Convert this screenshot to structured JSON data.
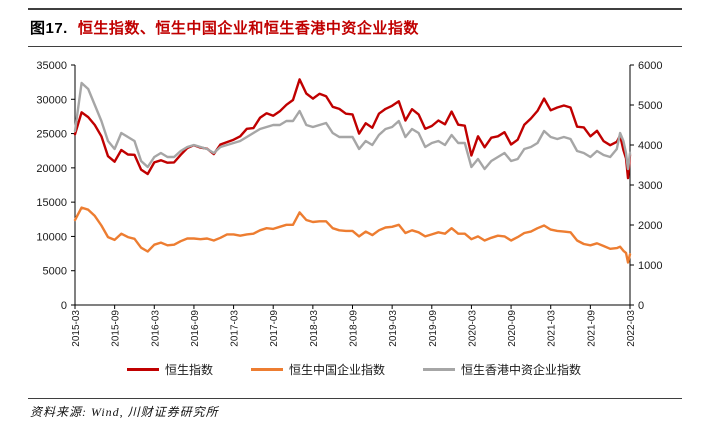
{
  "header": {
    "figure_label": "图17.",
    "figure_title": "恒生指数、恒生中国企业和恒生香港中资企业指数"
  },
  "source_note": "资料来源: Wind, 川财证券研究所",
  "chart_data": {
    "type": "line",
    "title": "恒生指数、恒生中国企业和恒生香港中资企业指数",
    "grid": false,
    "legend_position": "bottom",
    "x_months_span": 84,
    "x_tick_labels": [
      "2015-03",
      "2015-09",
      "2016-03",
      "2016-09",
      "2017-03",
      "2017-09",
      "2018-03",
      "2018-09",
      "2019-03",
      "2019-09",
      "2020-03",
      "2020-09",
      "2021-03",
      "2021-09",
      "2022-03"
    ],
    "axes": {
      "left": {
        "min": 0,
        "max": 35000,
        "step": 5000,
        "tick_labels": [
          "0",
          "5000",
          "10000",
          "15000",
          "20000",
          "25000",
          "30000",
          "35000"
        ]
      },
      "right": {
        "min": 0,
        "max": 6000,
        "step": 1000,
        "tick_labels": [
          "0",
          "1000",
          "2000",
          "3000",
          "4000",
          "5000",
          "6000"
        ]
      }
    },
    "series": [
      {
        "name": "恒生指数",
        "color": "#c00000",
        "axis": "left",
        "points": [
          [
            0,
            24900
          ],
          [
            1,
            28100
          ],
          [
            2,
            27400
          ],
          [
            3,
            26250
          ],
          [
            4,
            24600
          ],
          [
            5,
            21700
          ],
          [
            6,
            20900
          ],
          [
            7,
            22600
          ],
          [
            8,
            21950
          ],
          [
            9,
            21900
          ],
          [
            10,
            19750
          ],
          [
            11,
            19100
          ],
          [
            12,
            20800
          ],
          [
            13,
            21100
          ],
          [
            14,
            20750
          ],
          [
            15,
            20800
          ],
          [
            16,
            21900
          ],
          [
            17,
            22900
          ],
          [
            18,
            23300
          ],
          [
            19,
            22950
          ],
          [
            20,
            22800
          ],
          [
            21,
            22000
          ],
          [
            22,
            23400
          ],
          [
            23,
            23750
          ],
          [
            24,
            24100
          ],
          [
            25,
            24600
          ],
          [
            26,
            25700
          ],
          [
            27,
            25800
          ],
          [
            28,
            27300
          ],
          [
            29,
            27950
          ],
          [
            30,
            27600
          ],
          [
            31,
            28250
          ],
          [
            32,
            29200
          ],
          [
            33,
            29900
          ],
          [
            34,
            32900
          ],
          [
            35,
            30850
          ],
          [
            36,
            30100
          ],
          [
            37,
            30800
          ],
          [
            38,
            30450
          ],
          [
            39,
            28900
          ],
          [
            40,
            28600
          ],
          [
            41,
            27900
          ],
          [
            42,
            27800
          ],
          [
            43,
            25000
          ],
          [
            44,
            26500
          ],
          [
            45,
            25850
          ],
          [
            46,
            27900
          ],
          [
            47,
            28600
          ],
          [
            48,
            29050
          ],
          [
            49,
            29700
          ],
          [
            50,
            26900
          ],
          [
            51,
            28550
          ],
          [
            52,
            27800
          ],
          [
            53,
            25700
          ],
          [
            54,
            26100
          ],
          [
            55,
            26900
          ],
          [
            56,
            26350
          ],
          [
            57,
            28200
          ],
          [
            58,
            26300
          ],
          [
            59,
            26150
          ],
          [
            60,
            21800
          ],
          [
            61,
            24600
          ],
          [
            62,
            23000
          ],
          [
            63,
            24400
          ],
          [
            64,
            24600
          ],
          [
            65,
            25200
          ],
          [
            66,
            23400
          ],
          [
            67,
            24100
          ],
          [
            68,
            26300
          ],
          [
            69,
            27200
          ],
          [
            70,
            28300
          ],
          [
            71,
            30100
          ],
          [
            72,
            28400
          ],
          [
            73,
            28800
          ],
          [
            74,
            29100
          ],
          [
            75,
            28800
          ],
          [
            76,
            26000
          ],
          [
            77,
            25900
          ],
          [
            78,
            24600
          ],
          [
            79,
            25400
          ],
          [
            80,
            23900
          ],
          [
            81,
            23300
          ],
          [
            82,
            23800
          ],
          [
            82.5,
            24700
          ],
          [
            83,
            22600
          ],
          [
            83.4,
            21400
          ],
          [
            83.7,
            18500
          ],
          [
            84,
            21900
          ]
        ]
      },
      {
        "name": "恒生中国企业指数",
        "color": "#ed7d31",
        "axis": "left",
        "points": [
          [
            0,
            12400
          ],
          [
            1,
            14200
          ],
          [
            2,
            13900
          ],
          [
            3,
            13000
          ],
          [
            4,
            11600
          ],
          [
            5,
            9900
          ],
          [
            6,
            9500
          ],
          [
            7,
            10400
          ],
          [
            8,
            9900
          ],
          [
            9,
            9650
          ],
          [
            10,
            8350
          ],
          [
            11,
            7800
          ],
          [
            12,
            8800
          ],
          [
            13,
            9100
          ],
          [
            14,
            8700
          ],
          [
            15,
            8800
          ],
          [
            16,
            9300
          ],
          [
            17,
            9700
          ],
          [
            18,
            9700
          ],
          [
            19,
            9600
          ],
          [
            20,
            9700
          ],
          [
            21,
            9400
          ],
          [
            22,
            9800
          ],
          [
            23,
            10300
          ],
          [
            24,
            10300
          ],
          [
            25,
            10100
          ],
          [
            26,
            10300
          ],
          [
            27,
            10400
          ],
          [
            28,
            10900
          ],
          [
            29,
            11200
          ],
          [
            30,
            11100
          ],
          [
            31,
            11400
          ],
          [
            32,
            11700
          ],
          [
            33,
            11700
          ],
          [
            34,
            13500
          ],
          [
            35,
            12400
          ],
          [
            36,
            12100
          ],
          [
            37,
            12200
          ],
          [
            38,
            12200
          ],
          [
            39,
            11200
          ],
          [
            40,
            10900
          ],
          [
            41,
            10800
          ],
          [
            42,
            10800
          ],
          [
            43,
            10000
          ],
          [
            44,
            10700
          ],
          [
            45,
            10200
          ],
          [
            46,
            10900
          ],
          [
            47,
            11300
          ],
          [
            48,
            11400
          ],
          [
            49,
            11700
          ],
          [
            50,
            10500
          ],
          [
            51,
            10900
          ],
          [
            52,
            10600
          ],
          [
            53,
            10000
          ],
          [
            54,
            10300
          ],
          [
            55,
            10600
          ],
          [
            56,
            10400
          ],
          [
            57,
            11200
          ],
          [
            58,
            10400
          ],
          [
            59,
            10400
          ],
          [
            60,
            9600
          ],
          [
            61,
            10000
          ],
          [
            62,
            9400
          ],
          [
            63,
            9800
          ],
          [
            64,
            10100
          ],
          [
            65,
            10000
          ],
          [
            66,
            9400
          ],
          [
            67,
            9900
          ],
          [
            68,
            10500
          ],
          [
            69,
            10700
          ],
          [
            70,
            11200
          ],
          [
            71,
            11600
          ],
          [
            72,
            11000
          ],
          [
            73,
            10800
          ],
          [
            74,
            10700
          ],
          [
            75,
            10600
          ],
          [
            76,
            9400
          ],
          [
            77,
            8900
          ],
          [
            78,
            8700
          ],
          [
            79,
            9000
          ],
          [
            80,
            8600
          ],
          [
            81,
            8200
          ],
          [
            82,
            8300
          ],
          [
            82.5,
            8500
          ],
          [
            83,
            7900
          ],
          [
            83.4,
            7600
          ],
          [
            83.7,
            6200
          ],
          [
            84,
            7400
          ]
        ]
      },
      {
        "name": "恒生香港中资企业指数",
        "color": "#a6a6a6",
        "axis": "right",
        "points": [
          [
            0,
            4350
          ],
          [
            1,
            5550
          ],
          [
            2,
            5400
          ],
          [
            3,
            5000
          ],
          [
            4,
            4600
          ],
          [
            5,
            4100
          ],
          [
            6,
            3900
          ],
          [
            7,
            4300
          ],
          [
            8,
            4200
          ],
          [
            9,
            4100
          ],
          [
            10,
            3600
          ],
          [
            11,
            3450
          ],
          [
            12,
            3700
          ],
          [
            13,
            3800
          ],
          [
            14,
            3700
          ],
          [
            15,
            3700
          ],
          [
            16,
            3850
          ],
          [
            17,
            3950
          ],
          [
            18,
            4000
          ],
          [
            19,
            3950
          ],
          [
            20,
            3900
          ],
          [
            21,
            3800
          ],
          [
            22,
            3950
          ],
          [
            23,
            4000
          ],
          [
            24,
            4050
          ],
          [
            25,
            4100
          ],
          [
            26,
            4200
          ],
          [
            27,
            4300
          ],
          [
            28,
            4400
          ],
          [
            29,
            4450
          ],
          [
            30,
            4500
          ],
          [
            31,
            4500
          ],
          [
            32,
            4600
          ],
          [
            33,
            4600
          ],
          [
            34,
            4850
          ],
          [
            35,
            4500
          ],
          [
            36,
            4450
          ],
          [
            37,
            4500
          ],
          [
            38,
            4550
          ],
          [
            39,
            4300
          ],
          [
            40,
            4200
          ],
          [
            41,
            4200
          ],
          [
            42,
            4200
          ],
          [
            43,
            3900
          ],
          [
            44,
            4100
          ],
          [
            45,
            4000
          ],
          [
            46,
            4250
          ],
          [
            47,
            4400
          ],
          [
            48,
            4450
          ],
          [
            49,
            4600
          ],
          [
            50,
            4200
          ],
          [
            51,
            4400
          ],
          [
            52,
            4300
          ],
          [
            53,
            3950
          ],
          [
            54,
            4050
          ],
          [
            55,
            4100
          ],
          [
            56,
            4000
          ],
          [
            57,
            4250
          ],
          [
            58,
            4050
          ],
          [
            59,
            4050
          ],
          [
            60,
            3450
          ],
          [
            61,
            3650
          ],
          [
            62,
            3400
          ],
          [
            63,
            3600
          ],
          [
            64,
            3700
          ],
          [
            65,
            3800
          ],
          [
            66,
            3600
          ],
          [
            67,
            3650
          ],
          [
            68,
            3900
          ],
          [
            69,
            3950
          ],
          [
            70,
            4050
          ],
          [
            71,
            4350
          ],
          [
            72,
            4200
          ],
          [
            73,
            4150
          ],
          [
            74,
            4200
          ],
          [
            75,
            4150
          ],
          [
            76,
            3850
          ],
          [
            77,
            3800
          ],
          [
            78,
            3700
          ],
          [
            79,
            3850
          ],
          [
            80,
            3750
          ],
          [
            81,
            3700
          ],
          [
            82,
            3900
          ],
          [
            82.5,
            4300
          ],
          [
            83,
            4100
          ],
          [
            83.4,
            3800
          ],
          [
            83.7,
            3400
          ],
          [
            84,
            3800
          ]
        ]
      }
    ]
  }
}
